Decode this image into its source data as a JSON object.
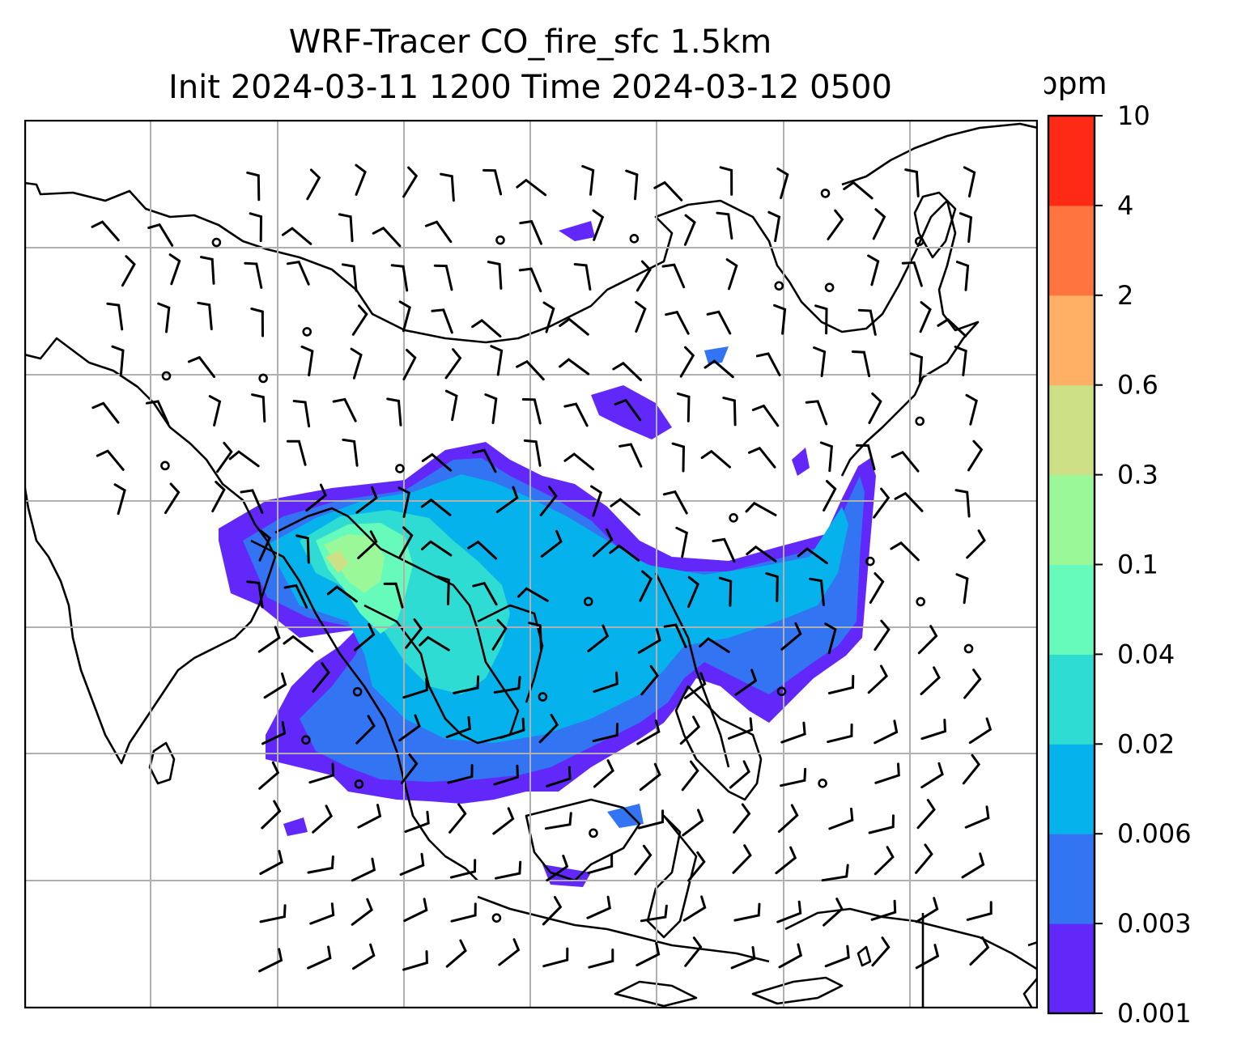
{
  "title": {
    "line1": "WRF-Tracer CO_fire_sfc 1.5km",
    "line2": "Init 2024-03-11 1200 Time 2024-03-12 0500"
  },
  "colorbar": {
    "unit": "ppm",
    "levels": [
      "0.001",
      "0.003",
      "0.006",
      "0.02",
      "0.04",
      "0.1",
      "0.3",
      "0.6",
      "2",
      "4",
      "10"
    ],
    "colors": [
      "#6228fa",
      "#3374f2",
      "#05b2eb",
      "#2fdcd4",
      "#66fbbb",
      "#9bf898",
      "#cde085",
      "#ffb064",
      "#ff743f",
      "#ff2a16"
    ]
  },
  "map": {
    "gridlines": true,
    "grid_color": "#b0b0b0",
    "coast_color": "#000000",
    "barb_color": "#000000"
  }
}
